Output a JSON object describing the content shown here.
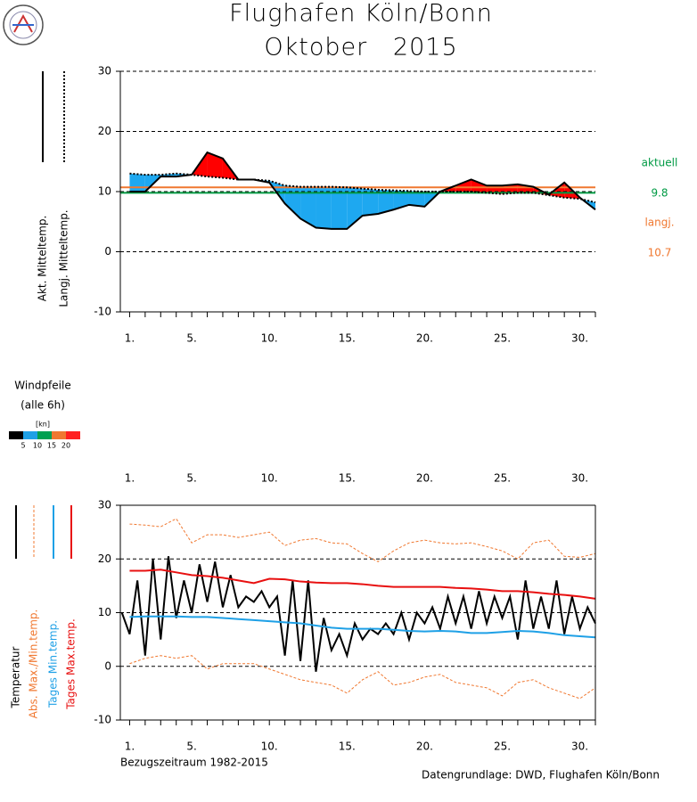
{
  "header": {
    "title": "Flughafen Köln/Bonn",
    "subtitle": "Oktober   2015"
  },
  "chart_data": [
    {
      "type": "line",
      "x": [
        1,
        2,
        3,
        4,
        5,
        6,
        7,
        8,
        9,
        10,
        11,
        12,
        13,
        14,
        15,
        16,
        17,
        18,
        19,
        20,
        21,
        22,
        23,
        24,
        25,
        26,
        27,
        28,
        29,
        30,
        31
      ],
      "series": [
        {
          "name": "Akt. Mitteltemp.",
          "color": "#000000",
          "dash": "solid",
          "values": [
            10,
            10,
            12.5,
            12.5,
            12.8,
            16.5,
            15.5,
            12,
            12,
            11.5,
            8,
            5.5,
            4,
            3.8,
            3.8,
            6,
            6.3,
            7,
            7.8,
            7.5,
            10,
            11,
            12,
            11,
            11,
            11.2,
            10.8,
            9.5,
            11.5,
            9,
            7
          ]
        },
        {
          "name": "Langj. Mitteltemp.",
          "color": "#000000",
          "dash": "dotted",
          "values": [
            13,
            12.8,
            12.8,
            13,
            12.8,
            12.5,
            12.3,
            12,
            12,
            11.8,
            11,
            10.8,
            10.8,
            10.8,
            10.7,
            10.5,
            10.3,
            10.2,
            10.1,
            10,
            10,
            10,
            10,
            9.8,
            9.6,
            9.8,
            9.8,
            9.4,
            9,
            8.8,
            8.2
          ]
        }
      ],
      "fill_above": "#ff0000",
      "fill_below": "#1ea8f0",
      "xlim": [
        0.4,
        31
      ],
      "ylim": [
        -10,
        30
      ],
      "yticks": [
        -10,
        0,
        10,
        20,
        30
      ],
      "xticks": [
        {
          "value": 1,
          "label": "1."
        },
        {
          "value": 5,
          "label": "5."
        },
        {
          "value": 10,
          "label": "10."
        },
        {
          "value": 15,
          "label": "15."
        },
        {
          "value": 20,
          "label": "20."
        },
        {
          "value": 25,
          "label": "25."
        },
        {
          "value": 30,
          "label": "30."
        }
      ],
      "grid": true,
      "annotations": [
        {
          "label": "aktuell",
          "value": 9.8,
          "color": "#009a44"
        },
        {
          "label": "langj.",
          "value": 10.7,
          "color": "#f07830"
        }
      ]
    },
    {
      "type": "line",
      "x": [
        1,
        2,
        3,
        4,
        5,
        6,
        7,
        8,
        9,
        10,
        11,
        12,
        13,
        14,
        15,
        16,
        17,
        18,
        19,
        20,
        21,
        22,
        23,
        24,
        25,
        26,
        27,
        28,
        29,
        30,
        31
      ],
      "series": [
        {
          "name": "Temperatur",
          "color": "#000000",
          "x": [
            0.5,
            1,
            1.5,
            2,
            2.5,
            3,
            3.5,
            4,
            4.5,
            5,
            5.5,
            6,
            6.5,
            7,
            7.5,
            8,
            8.5,
            9,
            9.5,
            10,
            10.5,
            11,
            11.5,
            12,
            12.5,
            13,
            13.5,
            14,
            14.5,
            15,
            15.5,
            16,
            16.5,
            17,
            17.5,
            18,
            18.5,
            19,
            19.5,
            20,
            20.5,
            21,
            21.5,
            22,
            22.5,
            23,
            23.5,
            24,
            24.5,
            25,
            25.5,
            26,
            26.5,
            27,
            27.5,
            28,
            28.5,
            29,
            29.5,
            30,
            30.5,
            31
          ],
          "values": [
            10,
            6,
            16,
            2,
            20,
            5,
            20.5,
            9,
            16,
            10,
            19,
            12,
            19.5,
            11,
            17,
            11,
            13,
            12,
            14,
            11,
            13,
            2,
            16,
            1,
            16,
            -1,
            9,
            3,
            6,
            2,
            8,
            5,
            7,
            6,
            8,
            6,
            10,
            5,
            10,
            8,
            11,
            7,
            13,
            8,
            13,
            7,
            14,
            8,
            13,
            9,
            13,
            5,
            16,
            7,
            13,
            7,
            16,
            6,
            13,
            7,
            11,
            8
          ]
        },
        {
          "name": "Abs. Max./Min.temp.",
          "color": "#f07830",
          "dash": "dashed",
          "values": [
            26.5,
            26.3,
            26,
            27.5,
            23,
            24.5,
            24.5,
            24,
            24.5,
            25,
            22.5,
            23.5,
            23.8,
            23,
            22.8,
            21,
            19.5,
            21.5,
            23,
            23.5,
            23,
            22.8,
            23,
            22.3,
            21.5,
            20,
            23,
            23.5,
            20.5,
            20.3,
            21
          ],
          "min_values": [
            0.5,
            1.5,
            2,
            1.5,
            2,
            -0.5,
            0.5,
            0.5,
            0.5,
            -0.5,
            -1.5,
            -2.5,
            -3,
            -3.5,
            -5,
            -2.5,
            -1,
            -3.5,
            -3,
            -2,
            -1.5,
            -3,
            -3.5,
            -4,
            -5.5,
            -3,
            -2.5,
            -4,
            -5,
            -6,
            -4
          ]
        },
        {
          "name": "Tages Min.temp.",
          "color": "#1ea0e6",
          "values": [
            9.2,
            9.3,
            9.3,
            9.3,
            9.2,
            9.2,
            9,
            8.8,
            8.6,
            8.4,
            8.2,
            8,
            7.6,
            7.2,
            7,
            7,
            7,
            6.8,
            6.6,
            6.5,
            6.6,
            6.5,
            6.2,
            6.2,
            6.4,
            6.6,
            6.5,
            6.2,
            5.8,
            5.6,
            5.4
          ]
        },
        {
          "name": "Tages Max.temp.",
          "color": "#e81010",
          "values": [
            17.8,
            17.8,
            18,
            17.5,
            17,
            16.8,
            16.5,
            16,
            15.5,
            16.3,
            16.2,
            15.8,
            15.6,
            15.5,
            15.5,
            15.3,
            15,
            14.8,
            14.8,
            14.8,
            14.8,
            14.6,
            14.5,
            14.3,
            14,
            14,
            13.8,
            13.5,
            13.3,
            13,
            12.6
          ]
        }
      ],
      "xlim": [
        0.4,
        31
      ],
      "ylim": [
        -10,
        30
      ],
      "yticks": [
        -10,
        0,
        10,
        20,
        30
      ],
      "xticks": [
        {
          "value": 1,
          "label": "1."
        },
        {
          "value": 5,
          "label": "5."
        },
        {
          "value": 10,
          "label": "10."
        },
        {
          "value": 15,
          "label": "15."
        },
        {
          "value": 20,
          "label": "20."
        },
        {
          "value": 25,
          "label": "25."
        },
        {
          "value": 30,
          "label": "30."
        }
      ],
      "grid": true
    }
  ],
  "wind": {
    "label": "Windpfeile",
    "sublabel": "(alle 6h)",
    "unit": "[kn]",
    "scale_ticks": [
      5,
      10,
      15,
      20
    ],
    "scale_colors": [
      "#000000",
      "#1ea0e6",
      "#00a050",
      "#f07830",
      "#ff2020"
    ],
    "xlim": [
      0.4,
      31
    ],
    "xticks": [
      {
        "value": 1,
        "label": "1."
      },
      {
        "value": 5,
        "label": "5."
      },
      {
        "value": 10,
        "label": "10."
      },
      {
        "value": 15,
        "label": "15."
      },
      {
        "value": 20,
        "label": "20."
      },
      {
        "value": 25,
        "label": "25."
      },
      {
        "value": 30,
        "label": "30."
      }
    ]
  },
  "footer": {
    "left": "Bezugszeitraum 1982-2015",
    "right": "Datengrundlage: DWD, Flughafen Köln/Bonn"
  }
}
